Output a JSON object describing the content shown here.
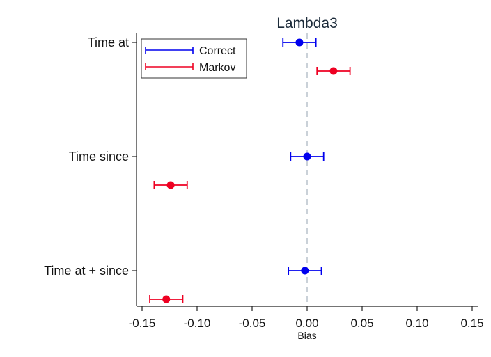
{
  "chart_data": {
    "type": "scatter",
    "subtype": "coefficient-plot",
    "title": "Lambda3",
    "xlabel": "Bias",
    "ylabel": "",
    "xlim": [
      -0.155,
      0.155
    ],
    "xticks": [
      -0.15,
      -0.1,
      -0.05,
      0.0,
      0.05,
      0.1,
      0.15
    ],
    "xtick_labels": [
      "-0.15",
      "-0.10",
      "-0.05",
      "0.00",
      "0.05",
      "0.10",
      "0.15"
    ],
    "reference_line": {
      "x": 0,
      "style": "dashed"
    },
    "categories": [
      "Time at",
      "Time since",
      "Time at + since"
    ],
    "series": [
      {
        "name": "Correct",
        "color": "#0000ee",
        "points": [
          {
            "category": "Time at",
            "estimate": -0.007,
            "lower": -0.022,
            "upper": 0.008
          },
          {
            "category": "Time since",
            "estimate": 0.0,
            "lower": -0.015,
            "upper": 0.015
          },
          {
            "category": "Time at + since",
            "estimate": -0.002,
            "lower": -0.017,
            "upper": 0.013
          }
        ]
      },
      {
        "name": "Markov",
        "color": "#ee0022",
        "points": [
          {
            "category": "Time at",
            "estimate": 0.024,
            "lower": 0.009,
            "upper": 0.039
          },
          {
            "category": "Time since",
            "estimate": -0.124,
            "lower": -0.139,
            "upper": -0.109
          },
          {
            "category": "Time at + since",
            "estimate": -0.128,
            "lower": -0.143,
            "upper": -0.113
          }
        ]
      }
    ],
    "legend": {
      "position": "top-left"
    }
  }
}
